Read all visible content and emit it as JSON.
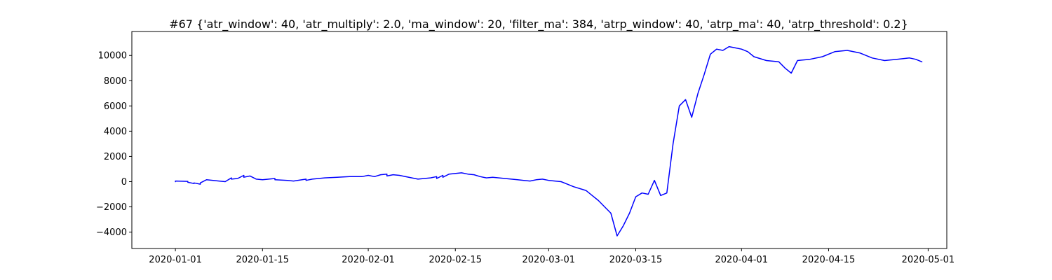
{
  "chart_data": {
    "type": "line",
    "title": "#67 {'atr_window': 40, 'atr_multiply': 2.0, 'ma_window': 20, 'filter_ma': 384, 'atrp_window': 40, 'atrp_ma': 40, 'atrp_threshold': 0.2}",
    "xlabel": "",
    "ylabel": "",
    "x_type": "date",
    "xlim": [
      "2019-12-25",
      "2020-05-04"
    ],
    "ylim": [
      -5300,
      11900
    ],
    "x_ticks": [
      "2020-01-01",
      "2020-01-15",
      "2020-02-01",
      "2020-02-15",
      "2020-03-01",
      "2020-03-15",
      "2020-04-01",
      "2020-04-15",
      "2020-05-01"
    ],
    "y_ticks": [
      -4000,
      -2000,
      0,
      2000,
      4000,
      6000,
      8000,
      10000
    ],
    "grid": false,
    "legend": "none",
    "series": [
      {
        "color": "#0000ff",
        "points": [
          [
            "2020-01-01",
            0
          ],
          [
            "2020-01-01",
            50
          ],
          [
            "2020-01-02",
            30
          ],
          [
            "2020-01-03",
            20
          ],
          [
            "2020-01-03",
            -50
          ],
          [
            "2020-01-04",
            -150
          ],
          [
            "2020-01-04",
            -100
          ],
          [
            "2020-01-05",
            -200
          ],
          [
            "2020-01-05",
            -100
          ],
          [
            "2020-01-06",
            150
          ],
          [
            "2020-01-08",
            50
          ],
          [
            "2020-01-09",
            0
          ],
          [
            "2020-01-10",
            300
          ],
          [
            "2020-01-10",
            200
          ],
          [
            "2020-01-11",
            250
          ],
          [
            "2020-01-12",
            500
          ],
          [
            "2020-01-12",
            350
          ],
          [
            "2020-01-13",
            450
          ],
          [
            "2020-01-14",
            200
          ],
          [
            "2020-01-15",
            150
          ],
          [
            "2020-01-16",
            200
          ],
          [
            "2020-01-17",
            250
          ],
          [
            "2020-01-17",
            150
          ],
          [
            "2020-01-19",
            100
          ],
          [
            "2020-01-20",
            50
          ],
          [
            "2020-01-22",
            200
          ],
          [
            "2020-01-22",
            100
          ],
          [
            "2020-01-23",
            200
          ],
          [
            "2020-01-24",
            250
          ],
          [
            "2020-01-25",
            300
          ],
          [
            "2020-01-27",
            350
          ],
          [
            "2020-01-29",
            400
          ],
          [
            "2020-01-31",
            400
          ],
          [
            "2020-02-01",
            500
          ],
          [
            "2020-02-02",
            400
          ],
          [
            "2020-02-03",
            550
          ],
          [
            "2020-02-04",
            600
          ],
          [
            "2020-02-04",
            450
          ],
          [
            "2020-02-05",
            550
          ],
          [
            "2020-02-06",
            500
          ],
          [
            "2020-02-08",
            300
          ],
          [
            "2020-02-09",
            200
          ],
          [
            "2020-02-11",
            300
          ],
          [
            "2020-02-12",
            400
          ],
          [
            "2020-02-12",
            250
          ],
          [
            "2020-02-13",
            500
          ],
          [
            "2020-02-13",
            350
          ],
          [
            "2020-02-14",
            600
          ],
          [
            "2020-02-16",
            700
          ],
          [
            "2020-02-17",
            600
          ],
          [
            "2020-02-18",
            550
          ],
          [
            "2020-02-19",
            400
          ],
          [
            "2020-02-20",
            300
          ],
          [
            "2020-02-21",
            350
          ],
          [
            "2020-02-22",
            300
          ],
          [
            "2020-02-24",
            200
          ],
          [
            "2020-02-25",
            150
          ],
          [
            "2020-02-26",
            100
          ],
          [
            "2020-02-27",
            50
          ],
          [
            "2020-02-28",
            150
          ],
          [
            "2020-02-29",
            200
          ],
          [
            "2020-03-01",
            100
          ],
          [
            "2020-03-02",
            50
          ],
          [
            "2020-03-03",
            0
          ],
          [
            "2020-03-04",
            -200
          ],
          [
            "2020-03-05",
            -400
          ],
          [
            "2020-03-07",
            -700
          ],
          [
            "2020-03-08",
            -1100
          ],
          [
            "2020-03-09",
            -1500
          ],
          [
            "2020-03-10",
            -2000
          ],
          [
            "2020-03-11",
            -2500
          ],
          [
            "2020-03-12",
            -4300
          ],
          [
            "2020-03-13",
            -3500
          ],
          [
            "2020-03-14",
            -2500
          ],
          [
            "2020-03-15",
            -1200
          ],
          [
            "2020-03-16",
            -900
          ],
          [
            "2020-03-17",
            -1000
          ],
          [
            "2020-03-18",
            100
          ],
          [
            "2020-03-19",
            -1100
          ],
          [
            "2020-03-20",
            -900
          ],
          [
            "2020-03-21",
            3000
          ],
          [
            "2020-03-22",
            6000
          ],
          [
            "2020-03-23",
            6500
          ],
          [
            "2020-03-24",
            5100
          ],
          [
            "2020-03-25",
            7000
          ],
          [
            "2020-03-26",
            8500
          ],
          [
            "2020-03-27",
            10100
          ],
          [
            "2020-03-28",
            10500
          ],
          [
            "2020-03-29",
            10400
          ],
          [
            "2020-03-30",
            10700
          ],
          [
            "2020-03-31",
            10600
          ],
          [
            "2020-04-01",
            10500
          ],
          [
            "2020-04-02",
            10300
          ],
          [
            "2020-04-03",
            9900
          ],
          [
            "2020-04-05",
            9600
          ],
          [
            "2020-04-07",
            9500
          ],
          [
            "2020-04-08",
            9000
          ],
          [
            "2020-04-09",
            8600
          ],
          [
            "2020-04-10",
            9600
          ],
          [
            "2020-04-12",
            9700
          ],
          [
            "2020-04-14",
            9900
          ],
          [
            "2020-04-16",
            10300
          ],
          [
            "2020-04-18",
            10400
          ],
          [
            "2020-04-20",
            10200
          ],
          [
            "2020-04-22",
            9800
          ],
          [
            "2020-04-24",
            9600
          ],
          [
            "2020-04-26",
            9700
          ],
          [
            "2020-04-28",
            9800
          ],
          [
            "2020-04-29",
            9700
          ],
          [
            "2020-04-30",
            9500
          ]
        ]
      }
    ]
  }
}
